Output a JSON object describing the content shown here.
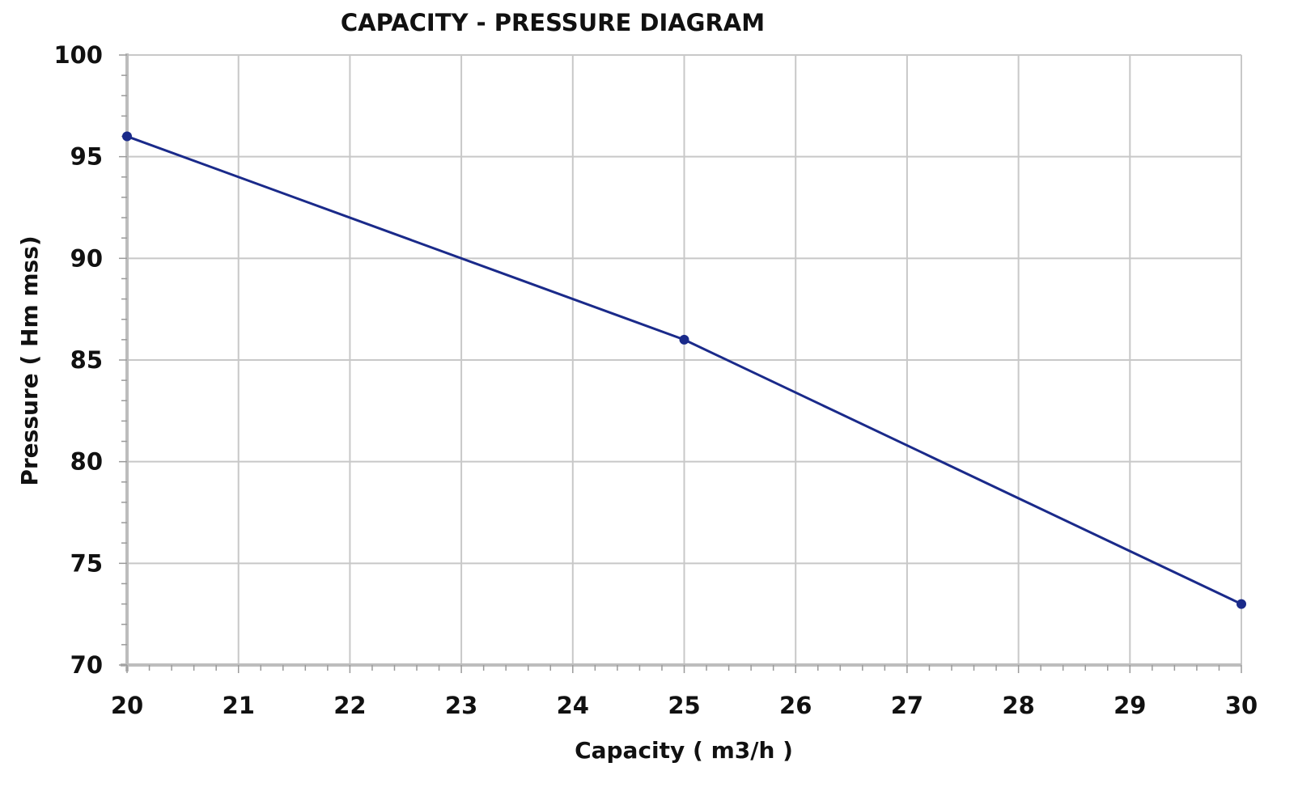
{
  "chart_data": {
    "type": "line",
    "title": "CAPACITY - PRESSURE DIAGRAM",
    "xlabel": "Capacity ( m3/h )",
    "ylabel": "Pressure ( Hm mss)",
    "xlim": [
      20,
      30
    ],
    "ylim": [
      70,
      100
    ],
    "x_ticks": [
      20,
      21,
      22,
      23,
      24,
      25,
      26,
      27,
      28,
      29,
      30
    ],
    "x_tick_labels": [
      "20",
      "21",
      "22",
      "23",
      "24",
      "25",
      "26",
      "27",
      "28",
      "29",
      "30"
    ],
    "y_ticks": [
      70,
      75,
      80,
      85,
      90,
      95,
      100
    ],
    "y_tick_labels": [
      "70",
      "75",
      "80",
      "85",
      "90",
      "95",
      "100"
    ],
    "x_minor_step": 0.2,
    "y_minor_step": 1,
    "grid": true,
    "legend": "none",
    "series": [
      {
        "name": "Pressure",
        "x": [
          20,
          25,
          30
        ],
        "values": [
          96,
          86,
          73
        ],
        "color": "#1a2a8a",
        "marker": "circle"
      }
    ],
    "colors": {
      "grid": "#c8c8c8",
      "axis": "#bdbdbd",
      "line": "#1a2a8a",
      "text": "#111111"
    }
  }
}
